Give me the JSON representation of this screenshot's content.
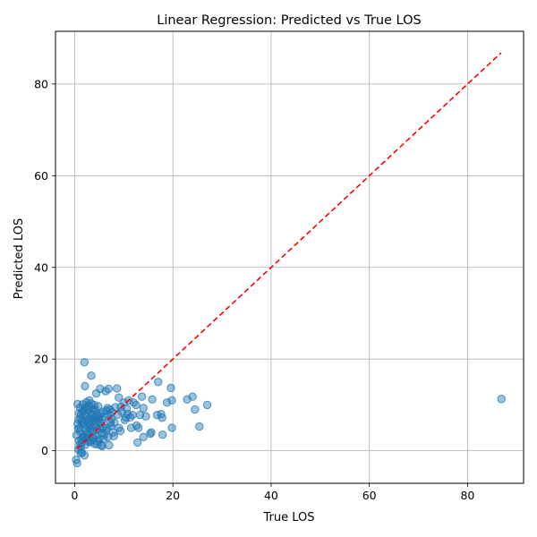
{
  "chart_data": {
    "type": "scatter",
    "title": "Linear Regression: Predicted vs True LOS",
    "xlabel": "True LOS",
    "ylabel": "Predicted LOS",
    "xlim": [
      -3.9,
      91.4
    ],
    "ylim": [
      -7.1,
      91.5
    ],
    "xticks": [
      0,
      20,
      40,
      60,
      80
    ],
    "yticks": [
      0,
      20,
      40,
      60,
      80
    ],
    "grid": true,
    "point_color": "#1f77b4",
    "point_alpha": 0.45,
    "reference_line": {
      "from": [
        0.4,
        0.4
      ],
      "to": [
        86.8,
        86.8
      ],
      "color": "#ff0000",
      "style": "dashed"
    },
    "series": [
      {
        "points": [
          [
            0.3,
            -2.0
          ],
          [
            0.5,
            -2.7
          ],
          [
            0.4,
            3.4
          ],
          [
            0.6,
            10.2
          ],
          [
            0.8,
            0.3
          ],
          [
            1.0,
            1.3
          ],
          [
            1.2,
            -0.5
          ],
          [
            1.5,
            -0.4
          ],
          [
            2.0,
            19.3
          ],
          [
            2.1,
            14.1
          ],
          [
            3.4,
            16.4
          ],
          [
            2.0,
            -1.0
          ],
          [
            1.0,
            5.0
          ],
          [
            1.2,
            7.0
          ],
          [
            1.4,
            2.5
          ],
          [
            1.6,
            8.5
          ],
          [
            1.8,
            6.0
          ],
          [
            2.0,
            3.5
          ],
          [
            2.2,
            9.5
          ],
          [
            2.4,
            4.0
          ],
          [
            2.6,
            7.5
          ],
          [
            2.8,
            2.0
          ],
          [
            3.0,
            11.0
          ],
          [
            3.2,
            5.5
          ],
          [
            3.4,
            8.0
          ],
          [
            3.6,
            3.0
          ],
          [
            3.8,
            6.5
          ],
          [
            4.0,
            1.5
          ],
          [
            4.2,
            9.0
          ],
          [
            4.4,
            12.5
          ],
          [
            4.6,
            4.5
          ],
          [
            4.8,
            7.0
          ],
          [
            5.0,
            2.5
          ],
          [
            5.2,
            13.5
          ],
          [
            5.4,
            6.0
          ],
          [
            5.6,
            1.0
          ],
          [
            5.8,
            8.5
          ],
          [
            6.0,
            3.5
          ],
          [
            6.3,
            13.0
          ],
          [
            6.6,
            5.0
          ],
          [
            6.9,
            13.5
          ],
          [
            7.2,
            9.0
          ],
          [
            7.5,
            7.0
          ],
          [
            7.8,
            4.0
          ],
          [
            8.0,
            3.2
          ],
          [
            8.3,
            9.5
          ],
          [
            8.6,
            13.6
          ],
          [
            9.0,
            11.6
          ],
          [
            9.0,
            5.0
          ],
          [
            9.3,
            4.3
          ],
          [
            9.6,
            8.5
          ],
          [
            10.0,
            10.5
          ],
          [
            10.4,
            7.2
          ],
          [
            10.8,
            8.0
          ],
          [
            11.0,
            11.0
          ],
          [
            11.5,
            5.0
          ],
          [
            11.8,
            7.8
          ],
          [
            12.0,
            10.5
          ],
          [
            12.5,
            10.0
          ],
          [
            12.8,
            1.8
          ],
          [
            12.6,
            5.5
          ],
          [
            13.0,
            5.0
          ],
          [
            13.3,
            7.8
          ],
          [
            13.7,
            11.8
          ],
          [
            14.0,
            9.3
          ],
          [
            14.0,
            3.0
          ],
          [
            14.5,
            7.5
          ],
          [
            15.4,
            3.7
          ],
          [
            15.6,
            4.0
          ],
          [
            15.8,
            11.2
          ],
          [
            16.8,
            7.8
          ],
          [
            17.0,
            15.0
          ],
          [
            17.6,
            8.0
          ],
          [
            17.8,
            7.2
          ],
          [
            17.9,
            3.5
          ],
          [
            18.8,
            10.5
          ],
          [
            19.6,
            13.7
          ],
          [
            19.8,
            11.0
          ],
          [
            19.8,
            5.0
          ],
          [
            22.9,
            11.2
          ],
          [
            24.0,
            11.8
          ],
          [
            24.5,
            9.0
          ],
          [
            25.4,
            5.3
          ],
          [
            27.0,
            10.0
          ],
          [
            86.9,
            11.3
          ],
          [
            0.8,
            6.8
          ],
          [
            1.1,
            4.2
          ],
          [
            1.3,
            7.9
          ],
          [
            1.7,
            3.1
          ],
          [
            1.9,
            5.8
          ],
          [
            2.3,
            6.6
          ],
          [
            2.5,
            2.8
          ],
          [
            2.7,
            5.2
          ],
          [
            2.9,
            9.8
          ],
          [
            3.1,
            4.7
          ],
          [
            3.3,
            2.3
          ],
          [
            3.5,
            6.9
          ],
          [
            3.7,
            4.1
          ],
          [
            3.9,
            8.7
          ],
          [
            4.1,
            5.6
          ],
          [
            4.3,
            3.3
          ],
          [
            4.5,
            7.7
          ],
          [
            4.7,
            2.1
          ],
          [
            4.9,
            6.2
          ],
          [
            5.1,
            4.9
          ],
          [
            5.3,
            8.1
          ],
          [
            5.5,
            3.9
          ],
          [
            5.7,
            6.8
          ],
          [
            5.9,
            2.6
          ],
          [
            6.1,
            7.4
          ],
          [
            6.4,
            4.4
          ],
          [
            6.7,
            9.3
          ],
          [
            7.0,
            1.2
          ],
          [
            7.3,
            6.1
          ],
          [
            7.6,
            8.4
          ],
          [
            0.9,
            2.2
          ],
          [
            1.5,
            1.8
          ],
          [
            2.2,
            1.3
          ],
          [
            2.8,
            8.9
          ],
          [
            3.0,
            7.1
          ],
          [
            3.6,
            9.1
          ],
          [
            4.0,
            10.0
          ],
          [
            1.1,
            9.4
          ],
          [
            1.6,
            10.1
          ],
          [
            2.4,
            10.6
          ],
          [
            0.7,
            4.8
          ],
          [
            1.3,
            0.8
          ],
          [
            1.9,
            2.9
          ],
          [
            2.6,
            3.7
          ],
          [
            3.2,
            1.9
          ],
          [
            3.8,
            2.7
          ],
          [
            4.6,
            1.4
          ],
          [
            5.4,
            1.2
          ],
          [
            6.8,
            3.0
          ],
          [
            7.4,
            5.4
          ],
          [
            8.1,
            6.2
          ],
          [
            8.8,
            7.9
          ],
          [
            9.4,
            9.6
          ],
          [
            10.2,
            6.7
          ],
          [
            10.6,
            9.2
          ],
          [
            11.3,
            7.3
          ],
          [
            0.6,
            5.9
          ],
          [
            1.4,
            6.3
          ],
          [
            2.1,
            7.8
          ],
          [
            2.9,
            6.0
          ],
          [
            3.5,
            5.0
          ],
          [
            4.4,
            6.4
          ],
          [
            5.0,
            7.6
          ],
          [
            5.8,
            5.1
          ],
          [
            6.5,
            8.8
          ],
          [
            7.1,
            7.8
          ],
          [
            0.9,
            8.2
          ],
          [
            1.8,
            8.8
          ],
          [
            2.5,
            9.2
          ],
          [
            3.3,
            10.3
          ],
          [
            4.2,
            7.3
          ],
          [
            4.8,
            9.7
          ]
        ]
      }
    ]
  }
}
